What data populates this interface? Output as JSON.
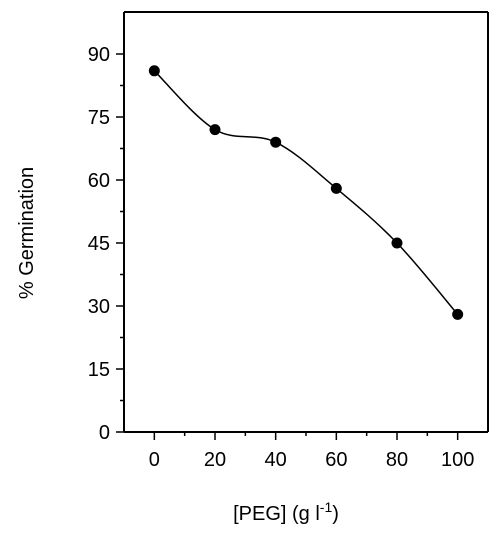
{
  "chart_data": {
    "type": "line",
    "title": "",
    "xlabel": {
      "base": "[PEG] (g l",
      "superscript": "-1",
      "suffix": ")"
    },
    "ylabel": "% Germination",
    "x": [
      0,
      20,
      40,
      60,
      80,
      100
    ],
    "series": [
      {
        "values": [
          86,
          72,
          69,
          58,
          45,
          28
        ]
      }
    ],
    "xlim": [
      -10,
      110
    ],
    "ylim": [
      0,
      100
    ],
    "xticks": [
      0,
      20,
      40,
      60,
      80,
      100
    ],
    "yticks": [
      0,
      15,
      30,
      45,
      60,
      75,
      90
    ],
    "grid": false,
    "legend": false,
    "marker": "filled-circle",
    "line": "smooth",
    "colors": {
      "line": "#000000",
      "marker": "#000000",
      "axis": "#000000",
      "background": "#ffffff"
    }
  }
}
